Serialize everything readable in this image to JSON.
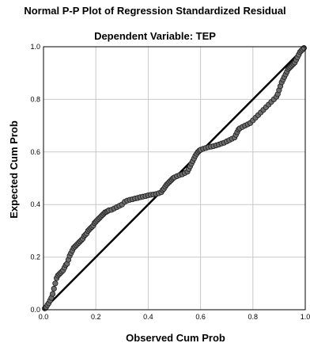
{
  "chart_data": {
    "type": "scatter",
    "title": "Normal P-P Plot of Regression Standardized Residual",
    "subtitle": "Dependent Variable: TEP",
    "xlabel": "Observed Cum Prob",
    "ylabel": "Expected Cum Prob",
    "xlim": [
      0,
      1
    ],
    "ylim": [
      0,
      1
    ],
    "x_ticks": [
      "0.0",
      "0.2",
      "0.4",
      "0.6",
      "0.8",
      "1.0"
    ],
    "y_ticks": [
      "0.0",
      "0.2",
      "0.4",
      "0.6",
      "0.8",
      "1.0"
    ],
    "grid": true,
    "reference_line": {
      "from": [
        0,
        0
      ],
      "to": [
        1,
        1
      ]
    },
    "colors": {
      "points_fill": "#6e6e6e",
      "points_stroke": "#1a1a1a",
      "reference_line": "#000000",
      "grid": "#c8c8c8",
      "frame": "#000000"
    },
    "points": [
      [
        0.005,
        0.005
      ],
      [
        0.01,
        0.01
      ],
      [
        0.015,
        0.018
      ],
      [
        0.02,
        0.025
      ],
      [
        0.025,
        0.035
      ],
      [
        0.03,
        0.045
      ],
      [
        0.035,
        0.06
      ],
      [
        0.04,
        0.08
      ],
      [
        0.045,
        0.1
      ],
      [
        0.05,
        0.12
      ],
      [
        0.055,
        0.13
      ],
      [
        0.06,
        0.135
      ],
      [
        0.065,
        0.14
      ],
      [
        0.07,
        0.145
      ],
      [
        0.075,
        0.15
      ],
      [
        0.08,
        0.16
      ],
      [
        0.085,
        0.17
      ],
      [
        0.09,
        0.175
      ],
      [
        0.095,
        0.19
      ],
      [
        0.1,
        0.205
      ],
      [
        0.105,
        0.215
      ],
      [
        0.11,
        0.225
      ],
      [
        0.115,
        0.235
      ],
      [
        0.12,
        0.24
      ],
      [
        0.125,
        0.245
      ],
      [
        0.13,
        0.25
      ],
      [
        0.135,
        0.255
      ],
      [
        0.14,
        0.26
      ],
      [
        0.145,
        0.265
      ],
      [
        0.15,
        0.27
      ],
      [
        0.155,
        0.28
      ],
      [
        0.16,
        0.285
      ],
      [
        0.165,
        0.29
      ],
      [
        0.17,
        0.3
      ],
      [
        0.175,
        0.305
      ],
      [
        0.18,
        0.31
      ],
      [
        0.185,
        0.315
      ],
      [
        0.19,
        0.32
      ],
      [
        0.195,
        0.33
      ],
      [
        0.2,
        0.335
      ],
      [
        0.205,
        0.34
      ],
      [
        0.21,
        0.345
      ],
      [
        0.215,
        0.35
      ],
      [
        0.22,
        0.355
      ],
      [
        0.225,
        0.36
      ],
      [
        0.23,
        0.365
      ],
      [
        0.235,
        0.37
      ],
      [
        0.24,
        0.372
      ],
      [
        0.245,
        0.375
      ],
      [
        0.25,
        0.378
      ],
      [
        0.26,
        0.38
      ],
      [
        0.27,
        0.385
      ],
      [
        0.28,
        0.39
      ],
      [
        0.29,
        0.395
      ],
      [
        0.3,
        0.4
      ],
      [
        0.31,
        0.41
      ],
      [
        0.32,
        0.415
      ],
      [
        0.33,
        0.418
      ],
      [
        0.34,
        0.42
      ],
      [
        0.35,
        0.423
      ],
      [
        0.36,
        0.425
      ],
      [
        0.37,
        0.428
      ],
      [
        0.38,
        0.43
      ],
      [
        0.39,
        0.432
      ],
      [
        0.4,
        0.435
      ],
      [
        0.41,
        0.437
      ],
      [
        0.42,
        0.438
      ],
      [
        0.43,
        0.44
      ],
      [
        0.44,
        0.443
      ],
      [
        0.45,
        0.447
      ],
      [
        0.455,
        0.455
      ],
      [
        0.46,
        0.46
      ],
      [
        0.465,
        0.468
      ],
      [
        0.47,
        0.475
      ],
      [
        0.475,
        0.48
      ],
      [
        0.48,
        0.485
      ],
      [
        0.485,
        0.49
      ],
      [
        0.49,
        0.495
      ],
      [
        0.495,
        0.5
      ],
      [
        0.5,
        0.503
      ],
      [
        0.51,
        0.508
      ],
      [
        0.52,
        0.512
      ],
      [
        0.53,
        0.515
      ],
      [
        0.54,
        0.52
      ],
      [
        0.55,
        0.525
      ],
      [
        0.555,
        0.535
      ],
      [
        0.56,
        0.545
      ],
      [
        0.565,
        0.555
      ],
      [
        0.57,
        0.565
      ],
      [
        0.575,
        0.575
      ],
      [
        0.58,
        0.585
      ],
      [
        0.585,
        0.593
      ],
      [
        0.59,
        0.6
      ],
      [
        0.595,
        0.605
      ],
      [
        0.6,
        0.608
      ],
      [
        0.61,
        0.612
      ],
      [
        0.62,
        0.615
      ],
      [
        0.63,
        0.618
      ],
      [
        0.64,
        0.62
      ],
      [
        0.65,
        0.622
      ],
      [
        0.66,
        0.625
      ],
      [
        0.67,
        0.628
      ],
      [
        0.68,
        0.632
      ],
      [
        0.69,
        0.635
      ],
      [
        0.7,
        0.64
      ],
      [
        0.71,
        0.645
      ],
      [
        0.72,
        0.65
      ],
      [
        0.73,
        0.655
      ],
      [
        0.735,
        0.665
      ],
      [
        0.74,
        0.675
      ],
      [
        0.745,
        0.685
      ],
      [
        0.75,
        0.69
      ],
      [
        0.76,
        0.695
      ],
      [
        0.77,
        0.7
      ],
      [
        0.78,
        0.705
      ],
      [
        0.79,
        0.71
      ],
      [
        0.8,
        0.72
      ],
      [
        0.81,
        0.73
      ],
      [
        0.82,
        0.74
      ],
      [
        0.83,
        0.75
      ],
      [
        0.84,
        0.76
      ],
      [
        0.85,
        0.77
      ],
      [
        0.86,
        0.78
      ],
      [
        0.87,
        0.79
      ],
      [
        0.88,
        0.8
      ],
      [
        0.89,
        0.81
      ],
      [
        0.895,
        0.82
      ],
      [
        0.9,
        0.835
      ],
      [
        0.905,
        0.85
      ],
      [
        0.91,
        0.865
      ],
      [
        0.915,
        0.875
      ],
      [
        0.92,
        0.885
      ],
      [
        0.925,
        0.895
      ],
      [
        0.93,
        0.905
      ],
      [
        0.935,
        0.915
      ],
      [
        0.94,
        0.92
      ],
      [
        0.945,
        0.925
      ],
      [
        0.95,
        0.93
      ],
      [
        0.955,
        0.935
      ],
      [
        0.96,
        0.94
      ],
      [
        0.965,
        0.95
      ],
      [
        0.97,
        0.96
      ],
      [
        0.975,
        0.97
      ],
      [
        0.98,
        0.98
      ],
      [
        0.985,
        0.985
      ],
      [
        0.99,
        0.99
      ],
      [
        0.995,
        0.995
      ]
    ]
  }
}
